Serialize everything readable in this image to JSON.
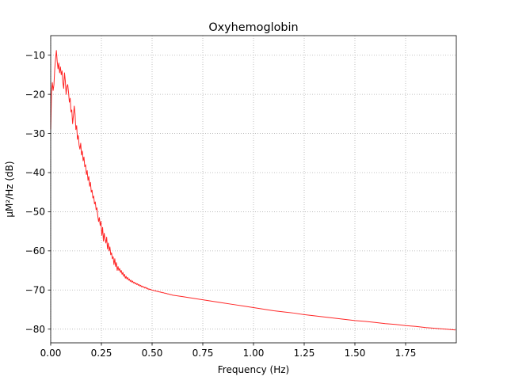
{
  "chart_data": {
    "type": "line",
    "title": "Oxyhemoglobin",
    "xlabel": "Frequency (Hz)",
    "ylabel": "μM²/Hz (dB)",
    "xlim": [
      0,
      2.0
    ],
    "ylim": [
      -83.5,
      -5.0
    ],
    "xticks": [
      {
        "value": 0.0,
        "label": "0.00"
      },
      {
        "value": 0.25,
        "label": "0.25"
      },
      {
        "value": 0.5,
        "label": "0.50"
      },
      {
        "value": 0.75,
        "label": "0.75"
      },
      {
        "value": 1.0,
        "label": "1.00"
      },
      {
        "value": 1.25,
        "label": "1.25"
      },
      {
        "value": 1.5,
        "label": "1.50"
      },
      {
        "value": 1.75,
        "label": "1.75"
      }
    ],
    "yticks": [
      {
        "value": -10,
        "label": "−10"
      },
      {
        "value": -20,
        "label": "−20"
      },
      {
        "value": -30,
        "label": "−30"
      },
      {
        "value": -40,
        "label": "−40"
      },
      {
        "value": -50,
        "label": "−50"
      },
      {
        "value": -60,
        "label": "−60"
      },
      {
        "value": -70,
        "label": "−70"
      },
      {
        "value": -80,
        "label": "−80"
      }
    ],
    "grid": true,
    "legend": "none",
    "series": [
      {
        "color": "#ff0000",
        "x": [
          0.0,
          0.004,
          0.008,
          0.012,
          0.016,
          0.02,
          0.024,
          0.028,
          0.032,
          0.036,
          0.04,
          0.044,
          0.048,
          0.052,
          0.056,
          0.06,
          0.064,
          0.068,
          0.072,
          0.076,
          0.08,
          0.084,
          0.088,
          0.092,
          0.096,
          0.1,
          0.104,
          0.108,
          0.112,
          0.116,
          0.12,
          0.124,
          0.128,
          0.132,
          0.136,
          0.14,
          0.144,
          0.148,
          0.152,
          0.156,
          0.16,
          0.164,
          0.168,
          0.172,
          0.176,
          0.18,
          0.184,
          0.188,
          0.192,
          0.196,
          0.2,
          0.204,
          0.208,
          0.212,
          0.216,
          0.22,
          0.224,
          0.228,
          0.232,
          0.236,
          0.24,
          0.244,
          0.248,
          0.252,
          0.256,
          0.26,
          0.264,
          0.268,
          0.272,
          0.276,
          0.28,
          0.284,
          0.288,
          0.292,
          0.296,
          0.3,
          0.304,
          0.308,
          0.312,
          0.316,
          0.32,
          0.324,
          0.328,
          0.332,
          0.336,
          0.34,
          0.344,
          0.348,
          0.352,
          0.356,
          0.36,
          0.364,
          0.368,
          0.372,
          0.376,
          0.38,
          0.384,
          0.388,
          0.392,
          0.396,
          0.4,
          0.404,
          0.408,
          0.412,
          0.416,
          0.42,
          0.424,
          0.428,
          0.432,
          0.436,
          0.44,
          0.444,
          0.448,
          0.452,
          0.456,
          0.46,
          0.464,
          0.468,
          0.472,
          0.476,
          0.48,
          0.484,
          0.488,
          0.492,
          0.496,
          0.5,
          0.504,
          0.508,
          0.512,
          0.516,
          0.52,
          0.524,
          0.528,
          0.532,
          0.536,
          0.54,
          0.544,
          0.548,
          0.552,
          0.556,
          0.56,
          0.564,
          0.568,
          0.572,
          0.576,
          0.58,
          0.584,
          0.588,
          0.592,
          0.596,
          0.6,
          0.65,
          0.7,
          0.75,
          0.8,
          0.85,
          0.9,
          0.95,
          1.0,
          1.05,
          1.1,
          1.15,
          1.2,
          1.25,
          1.3,
          1.35,
          1.4,
          1.45,
          1.5,
          1.55,
          1.6,
          1.65,
          1.7,
          1.75,
          1.8,
          1.85,
          1.9,
          1.95,
          1.996
        ],
        "y": [
          -29.0,
          -19.5,
          -17.0,
          -19.0,
          -17.5,
          -13.5,
          -11.0,
          -8.8,
          -11.5,
          -13.5,
          -12.0,
          -14.5,
          -13.0,
          -15.0,
          -14.0,
          -17.0,
          -18.5,
          -14.5,
          -16.5,
          -20.0,
          -18.0,
          -17.5,
          -19.5,
          -22.0,
          -21.0,
          -24.5,
          -24.0,
          -27.5,
          -25.5,
          -23.0,
          -25.0,
          -29.0,
          -28.0,
          -31.5,
          -30.5,
          -33.0,
          -34.0,
          -32.5,
          -35.5,
          -34.5,
          -37.0,
          -36.0,
          -38.5,
          -38.0,
          -40.5,
          -39.5,
          -42.0,
          -41.0,
          -43.5,
          -42.5,
          -45.0,
          -44.5,
          -46.5,
          -46.0,
          -48.0,
          -47.5,
          -49.5,
          -49.0,
          -51.0,
          -52.5,
          -51.5,
          -53.5,
          -52.5,
          -56.0,
          -54.0,
          -57.5,
          -55.5,
          -57.0,
          -58.0,
          -56.5,
          -59.5,
          -58.0,
          -60.0,
          -59.0,
          -61.0,
          -60.5,
          -62.0,
          -61.5,
          -63.5,
          -62.0,
          -64.0,
          -63.0,
          -65.0,
          -64.0,
          -65.0,
          -64.5,
          -65.5,
          -65.0,
          -66.0,
          -65.5,
          -66.5,
          -66.0,
          -67.0,
          -66.5,
          -67.2,
          -66.8,
          -67.5,
          -67.2,
          -67.8,
          -67.5,
          -68.0,
          -67.7,
          -68.2,
          -68.0,
          -68.4,
          -68.2,
          -68.6,
          -68.4,
          -68.8,
          -68.6,
          -69.0,
          -68.8,
          -69.2,
          -69.0,
          -69.3,
          -69.2,
          -69.5,
          -69.3,
          -69.6,
          -69.5,
          -69.8,
          -69.7,
          -69.9,
          -69.8,
          -70.0,
          -70.0,
          -70.1,
          -70.1,
          -70.2,
          -70.2,
          -70.3,
          -70.3,
          -70.4,
          -70.4,
          -70.5,
          -70.5,
          -70.6,
          -70.6,
          -70.7,
          -70.7,
          -70.8,
          -70.8,
          -70.9,
          -70.9,
          -71.0,
          -71.0,
          -71.1,
          -71.1,
          -71.2,
          -71.2,
          -71.3,
          -71.7,
          -72.1,
          -72.5,
          -72.9,
          -73.3,
          -73.7,
          -74.1,
          -74.5,
          -74.9,
          -75.3,
          -75.6,
          -75.9,
          -76.3,
          -76.6,
          -76.9,
          -77.2,
          -77.5,
          -77.8,
          -78.0,
          -78.3,
          -78.6,
          -78.8,
          -79.1,
          -79.3,
          -79.6,
          -79.8,
          -80.0,
          -80.2
        ]
      }
    ]
  }
}
